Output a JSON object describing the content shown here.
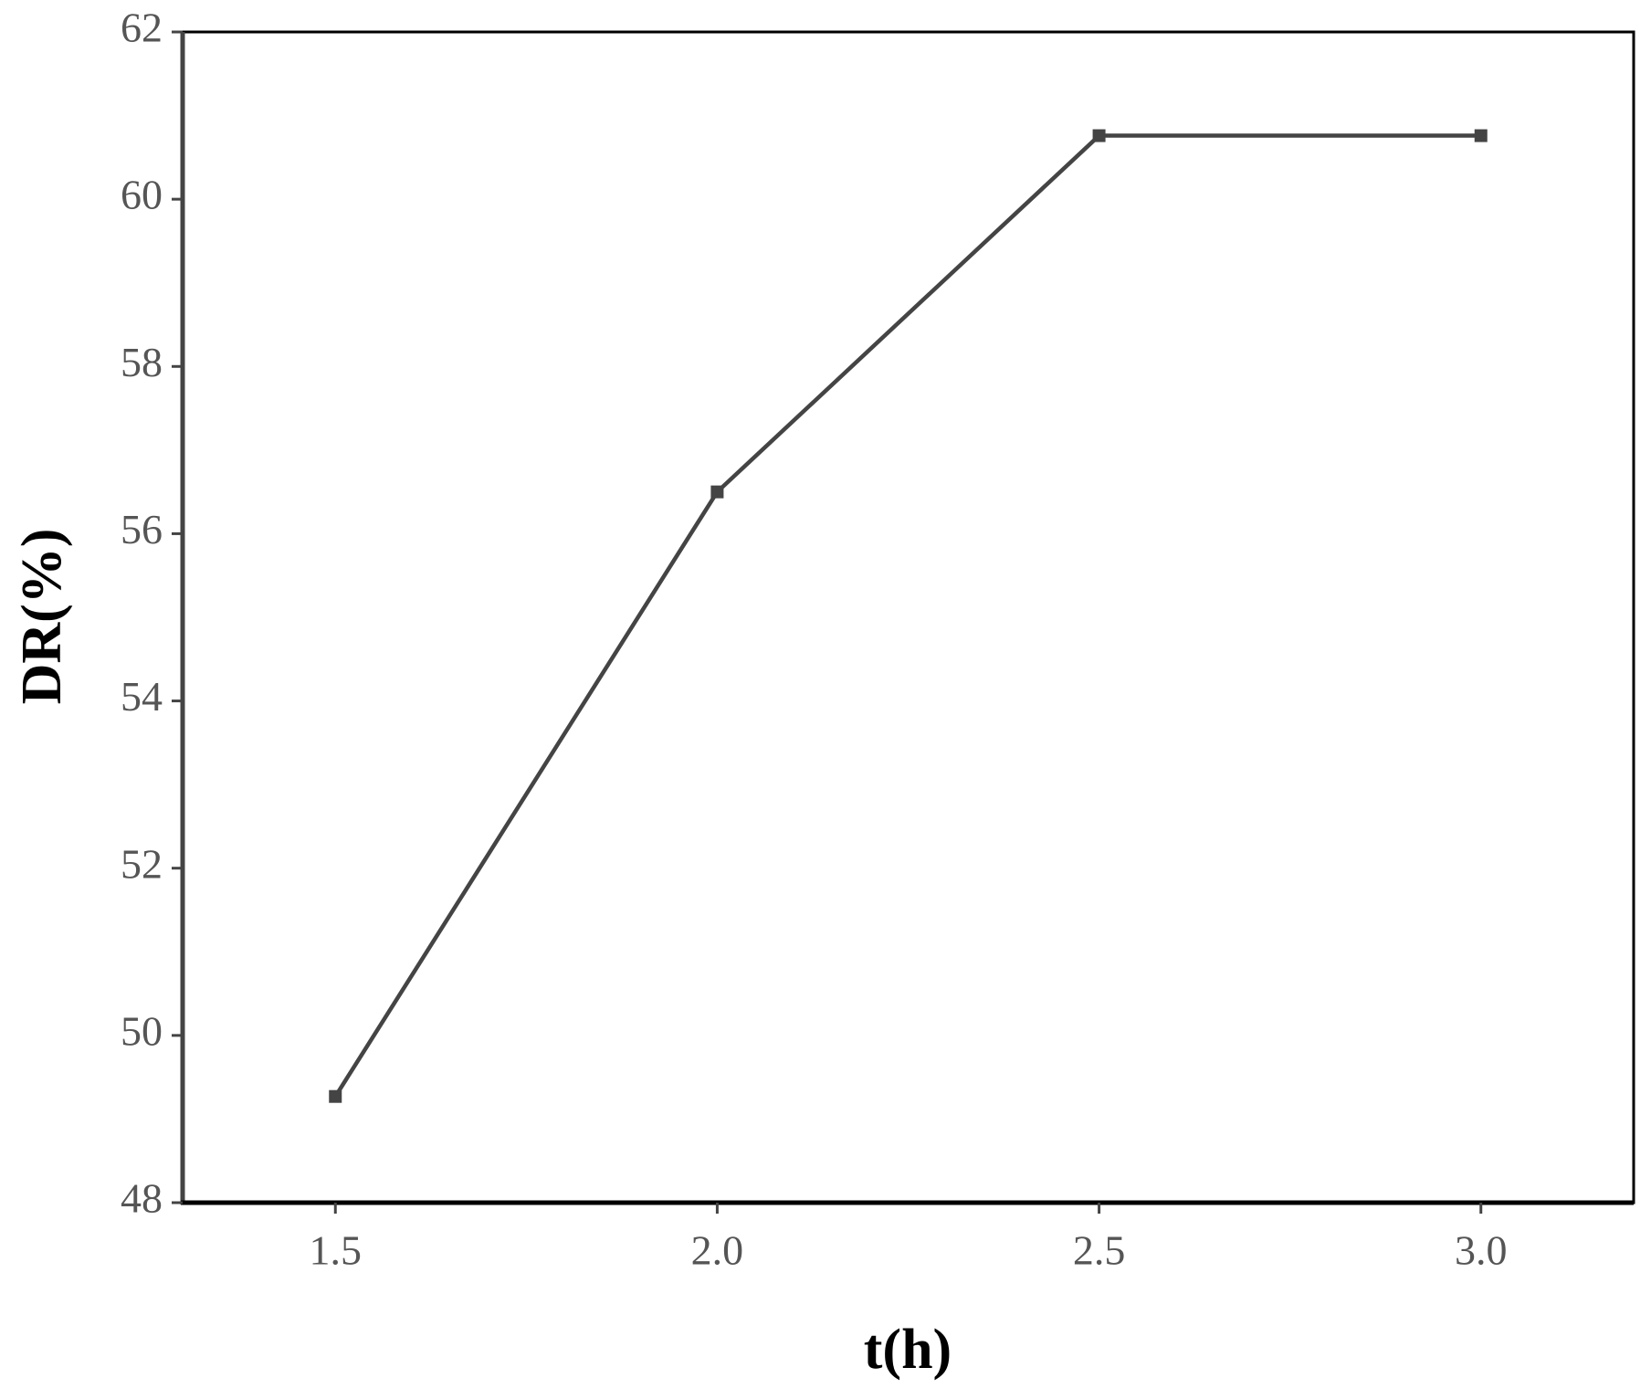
{
  "chart_data": {
    "type": "line",
    "x_label": "t(h)",
    "y_label": "DR(%)",
    "x": [
      1.5,
      2.0,
      2.5,
      3.0
    ],
    "series": [
      {
        "color": "#444444",
        "values": [
          49.27,
          56.5,
          60.76,
          60.76
        ]
      }
    ],
    "xlim": [
      1.3,
      3.2
    ],
    "xticks": [
      1.5,
      {
        "value": 2,
        "label": "2.0"
      },
      2.5,
      {
        "value": 3,
        "label": "3.0"
      }
    ],
    "ylim": [
      48,
      62
    ],
    "yticks": [
      48,
      50,
      52,
      54,
      56,
      58,
      60,
      62
    ],
    "grid": false
  }
}
